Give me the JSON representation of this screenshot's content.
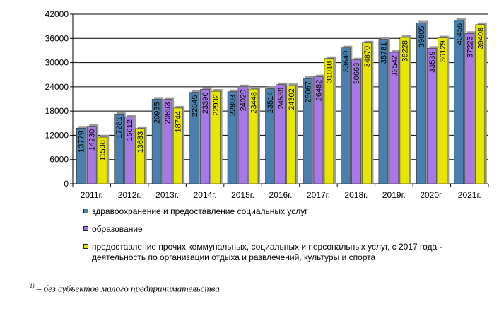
{
  "chart_data": {
    "type": "bar",
    "categories": [
      "2011г.",
      "2012г.",
      "2013г.",
      "2014г.",
      "2015г.",
      "2016г.",
      "2017г.",
      "2018г.",
      "2019г.",
      "2020г.",
      "2021г."
    ],
    "series": [
      {
        "name": "здравоохранение и предоставление социальных услуг",
        "color": "#4a7fae",
        "values": [
          13779,
          17281,
          20935,
          22645,
          22803,
          23514,
          26067,
          33649,
          35781,
          39805,
          40456
        ],
        "labels": [
          "13779",
          "17281",
          "20935",
          "22645",
          "22803",
          "23514",
          "26067",
          "33649",
          "35781",
          "39805",
          "40456"
        ]
      },
      {
        "name": "образование",
        "color": "#a679e6",
        "values": [
          14230,
          16612,
          20893,
          23390,
          24020,
          24539,
          26482,
          30663,
          32542,
          33539,
          37223
        ],
        "labels": [
          "14230",
          "16612",
          "20893",
          "23390",
          "24020",
          "24539",
          "26482",
          "30663",
          "32542",
          "33539",
          "37223"
        ]
      },
      {
        "name": "предоставление прочих коммунальных, социальных и персональных услуг, с 2017 года - деятельность по организации отдыха и развлечений, культуры и спорта",
        "color": "#e6e600",
        "values": [
          11538,
          13683,
          18744,
          22902,
          23448,
          24302,
          31018,
          34870,
          36228,
          36129,
          39408
        ],
        "labels": [
          "11538",
          "13683",
          "18744",
          "22902",
          "23448",
          "24302",
          "31018",
          "34870",
          "36228",
          "36129",
          "39408"
        ]
      }
    ],
    "ylim": [
      0,
      42000
    ],
    "yticks": [
      "0",
      "6000",
      "12000",
      "18000",
      "24000",
      "30000",
      "36000",
      "42000"
    ],
    "grid": true,
    "legend_position": "bottom"
  },
  "footnote": {
    "marker": "1)",
    "text": " – без субъектов малого предпринимательства"
  }
}
